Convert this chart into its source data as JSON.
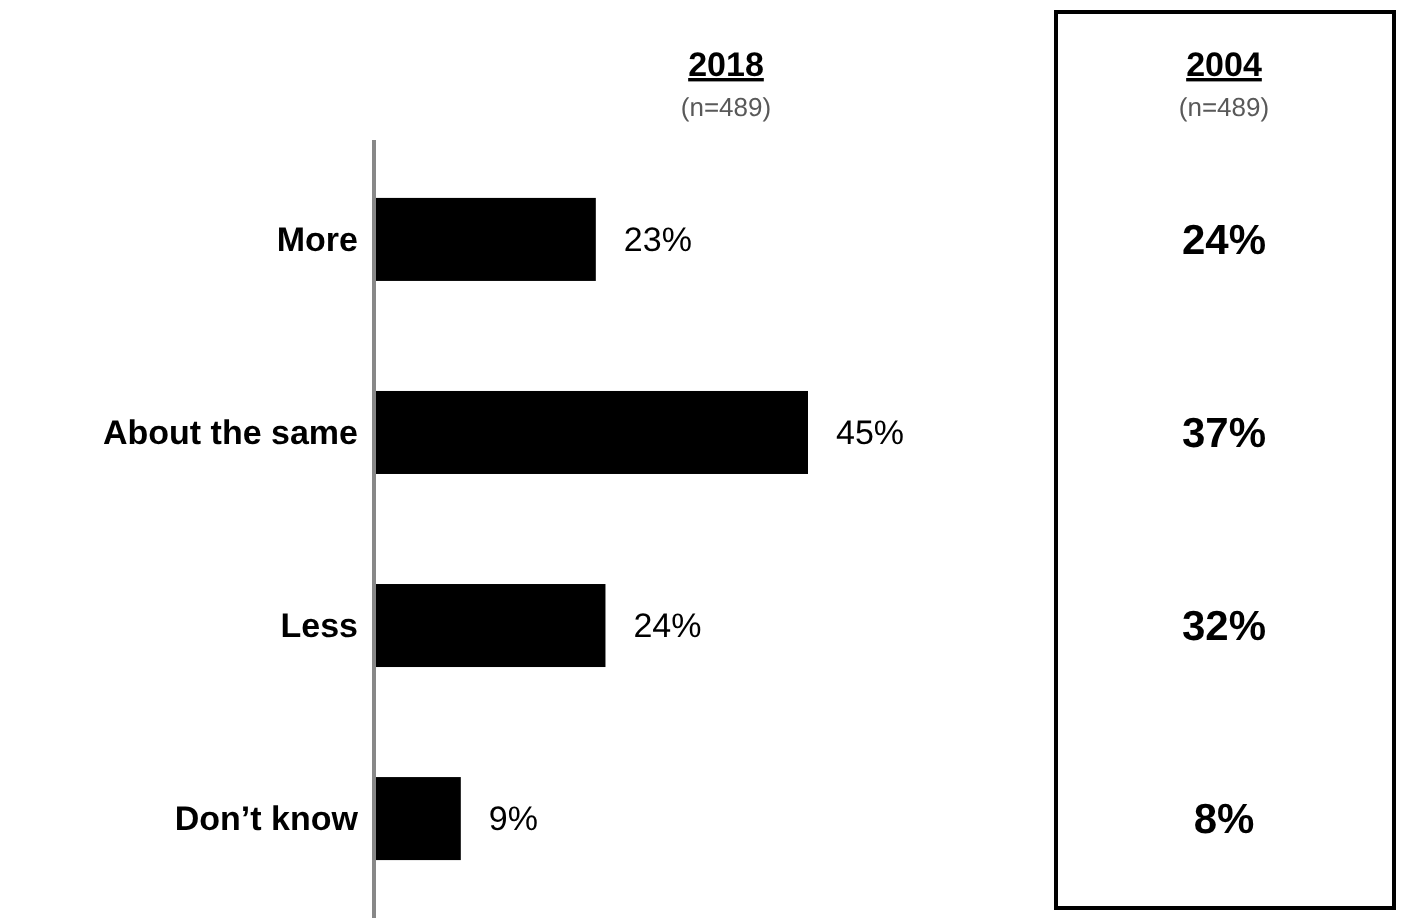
{
  "chart_data": [
    {
      "type": "bar",
      "orientation": "horizontal",
      "title": "2018",
      "subtitle": "(n=489)",
      "categories": [
        "More",
        "About the same",
        "Less",
        "Don’t know"
      ],
      "values": [
        23,
        45,
        24,
        9
      ],
      "color": "#000000",
      "value_labels": [
        "23%",
        "45%",
        "24%",
        "9%"
      ]
    },
    {
      "type": "other",
      "title": "2004",
      "subtitle": "(n=489)",
      "annotations": [
        "24%",
        "37%",
        "32%",
        "8%"
      ]
    }
  ]
}
